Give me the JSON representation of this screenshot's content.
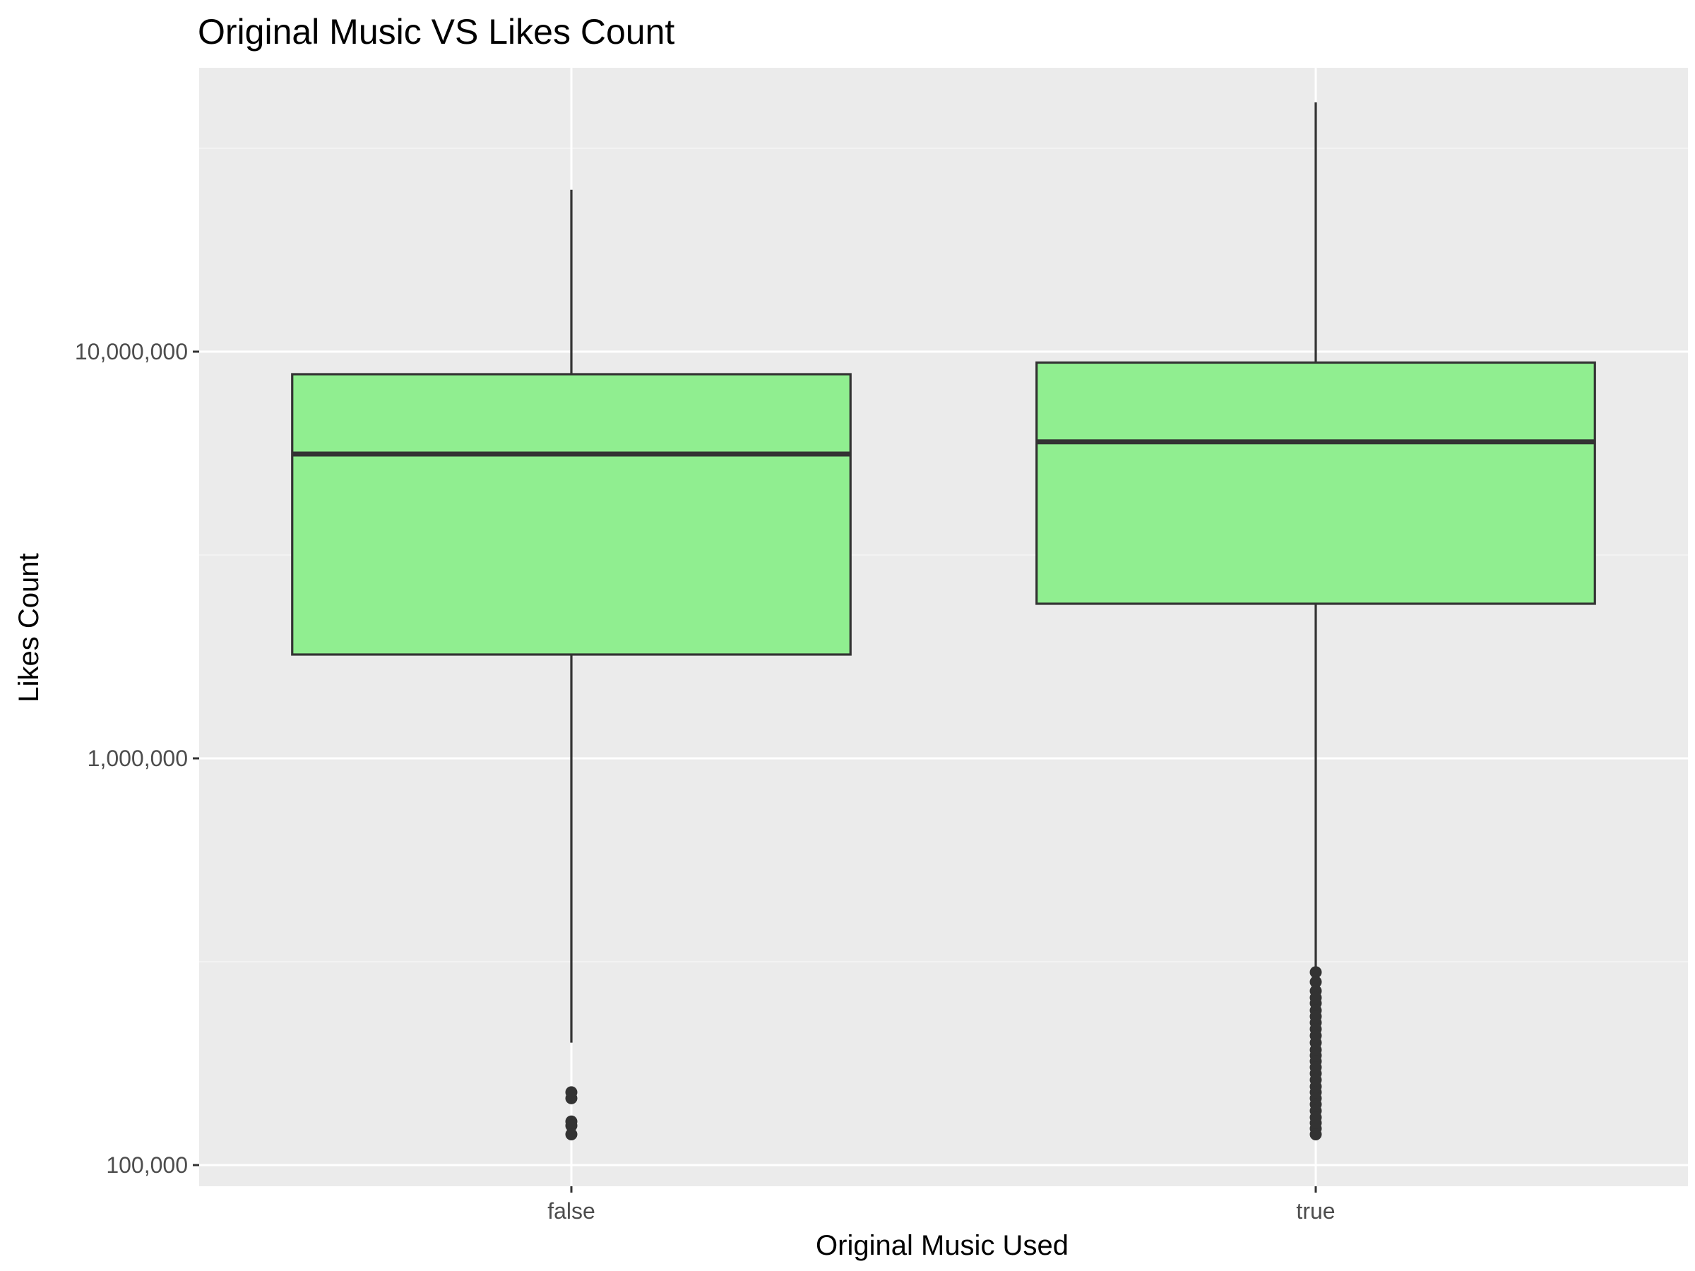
{
  "chart_data": {
    "type": "boxplot",
    "title": "Original Music VS Likes Count",
    "xlabel": "Original Music Used",
    "ylabel": "Likes Count",
    "y_scale": "log10",
    "ylim": [
      87000,
      53000000
    ],
    "y_ticks": [
      {
        "value": 100000,
        "label": "100,000"
      },
      {
        "value": 1000000,
        "label": "1,000,000"
      },
      {
        "value": 10000000,
        "label": "10,000,000"
      }
    ],
    "categories": [
      "false",
      "true"
    ],
    "boxes": [
      {
        "category": "false",
        "whisker_low": 200000,
        "q1": 1800000,
        "median": 5600000,
        "q3": 8800000,
        "whisker_high": 25000000,
        "outliers": [
          151000,
          146000,
          128000,
          125000,
          119000
        ]
      },
      {
        "category": "true",
        "whisker_low": 300000,
        "q1": 2400000,
        "median": 6000000,
        "q3": 9400000,
        "whisker_high": 41000000,
        "outliers": [
          298000,
          282000,
          268000,
          258000,
          250000,
          240000,
          232000,
          224000,
          216000,
          208000,
          200000,
          192000,
          186000,
          180000,
          174000,
          168000,
          162000,
          156000,
          151000,
          146000,
          141000,
          136000,
          131000,
          127000,
          123000,
          119000
        ]
      }
    ],
    "grid": true,
    "colors": {
      "panel_background": "#ebebeb",
      "grid_major": "#ffffff",
      "grid_minor": "#f5f5f5",
      "box_fill": "#90ee90",
      "box_line": "#333333",
      "tick_text": "#4d4d4d",
      "title_text": "#000000"
    }
  }
}
